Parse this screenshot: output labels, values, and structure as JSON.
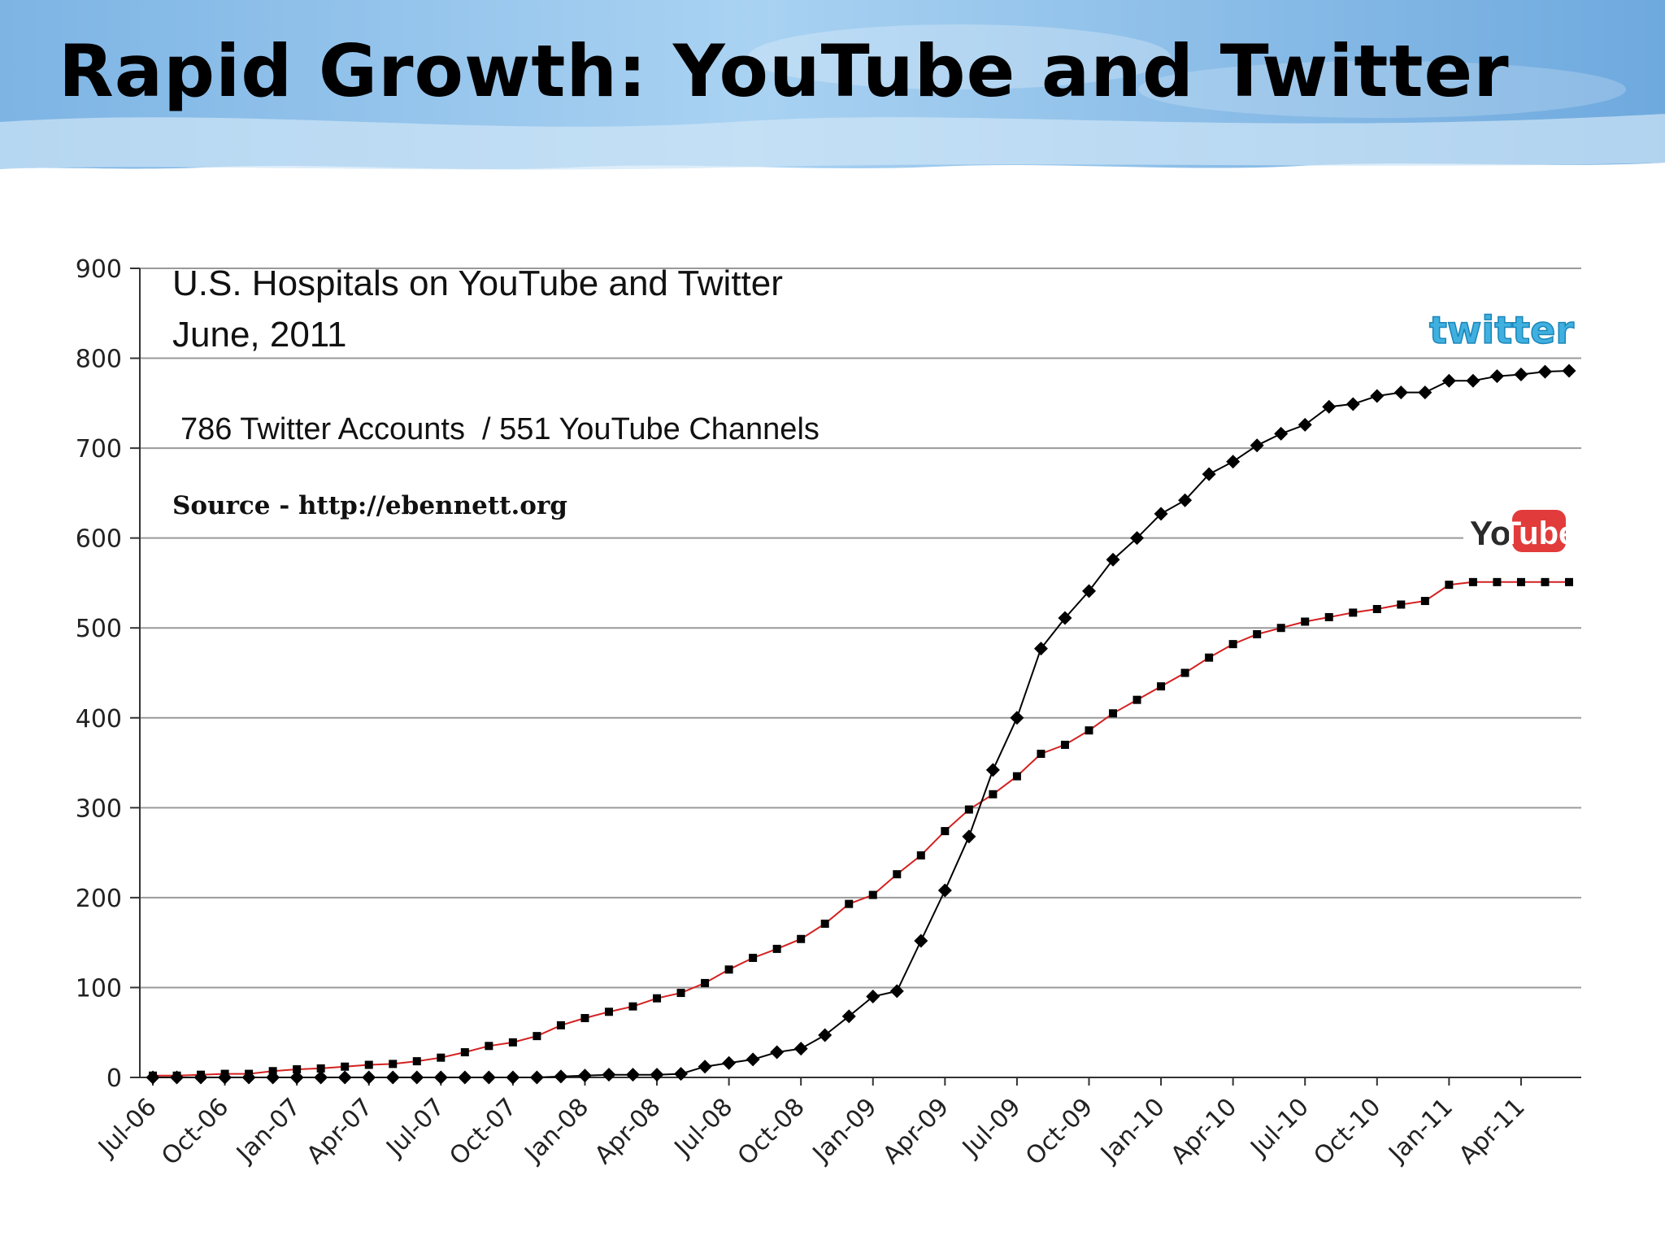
{
  "slide": {
    "title": "Rapid Growth: YouTube and Twitter"
  },
  "colors": {
    "sky": "#7fb6e6",
    "youtube_line": "#d42020",
    "twitter_line": "#000000",
    "grid": "#9a9a9a"
  },
  "logos": {
    "twitter": "twitter",
    "youtube_you": "You",
    "youtube_tube": "Tube"
  },
  "chart_data": {
    "type": "line",
    "title": "U.S. Hospitals on YouTube and Twitter",
    "subtitle": "June, 2011",
    "annotation": "786 Twitter Accounts  / 551 YouTube Channels",
    "source": "Source - http://ebennett.org",
    "xlabel": "",
    "ylabel": "",
    "ylim": [
      0,
      900
    ],
    "yticks": [
      0,
      100,
      200,
      300,
      400,
      500,
      600,
      700,
      800,
      900
    ],
    "grid": true,
    "legend": "logos at right",
    "xtick_labels": [
      "Jul-06",
      "Oct-06",
      "Jan-07",
      "Apr-07",
      "Jul-07",
      "Oct-07",
      "Jan-08",
      "Apr-08",
      "Jul-08",
      "Oct-08",
      "Jan-09",
      "Apr-09",
      "Jul-09",
      "Oct-09",
      "Jan-10",
      "Apr-10",
      "Jul-10",
      "Oct-10",
      "Jan-11",
      "Apr-11"
    ],
    "x": [
      "Jul-06",
      "Aug-06",
      "Sep-06",
      "Oct-06",
      "Nov-06",
      "Dec-06",
      "Jan-07",
      "Feb-07",
      "Mar-07",
      "Apr-07",
      "May-07",
      "Jun-07",
      "Jul-07",
      "Aug-07",
      "Sep-07",
      "Oct-07",
      "Nov-07",
      "Dec-07",
      "Jan-08",
      "Feb-08",
      "Mar-08",
      "Apr-08",
      "May-08",
      "Jun-08",
      "Jul-08",
      "Aug-08",
      "Sep-08",
      "Oct-08",
      "Nov-08",
      "Dec-08",
      "Jan-09",
      "Feb-09",
      "Mar-09",
      "Apr-09",
      "May-09",
      "Jun-09",
      "Jul-09",
      "Aug-09",
      "Sep-09",
      "Oct-09",
      "Nov-09",
      "Dec-09",
      "Jan-10",
      "Feb-10",
      "Mar-10",
      "Apr-10",
      "May-10",
      "Jun-10",
      "Jul-10",
      "Aug-10",
      "Sep-10",
      "Oct-10",
      "Nov-10",
      "Dec-10",
      "Jan-11",
      "Feb-11",
      "Mar-11",
      "Apr-11",
      "May-11",
      "Jun-11"
    ],
    "series": [
      {
        "name": "YouTube",
        "marker": "square",
        "values": [
          2,
          2,
          3,
          4,
          4,
          7,
          9,
          10,
          12,
          14,
          15,
          18,
          22,
          28,
          35,
          39,
          46,
          58,
          66,
          73,
          79,
          88,
          94,
          105,
          120,
          133,
          143,
          154,
          171,
          193,
          203,
          226,
          247,
          274,
          298,
          315,
          335,
          360,
          370,
          386,
          405,
          420,
          435,
          450,
          467,
          482,
          493,
          500,
          507,
          512,
          517,
          521,
          526,
          530,
          548,
          551,
          551,
          551,
          551,
          551
        ]
      },
      {
        "name": "Twitter",
        "marker": "diamond",
        "values": [
          0,
          0,
          0,
          0,
          0,
          0,
          0,
          0,
          0,
          0,
          0,
          0,
          0,
          0,
          0,
          0,
          0,
          1,
          2,
          3,
          3,
          3,
          4,
          12,
          16,
          20,
          28,
          32,
          47,
          68,
          90,
          96,
          152,
          208,
          268,
          342,
          400,
          477,
          511,
          541,
          576,
          600,
          627,
          642,
          671,
          685,
          703,
          716,
          726,
          746,
          749,
          758,
          762,
          762,
          775,
          775,
          780,
          782,
          785,
          786
        ]
      }
    ]
  }
}
